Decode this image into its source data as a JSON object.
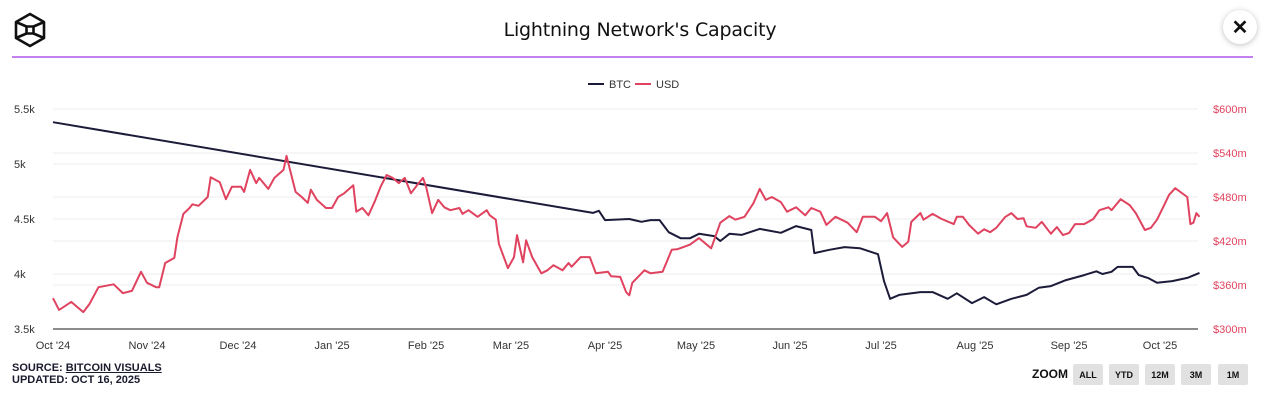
{
  "header": {
    "title": "Lightning Network's Capacity",
    "close_icon": "close-x-icon",
    "logo_icon": "cube-logo-icon"
  },
  "source": {
    "label": "SOURCE:",
    "link": "BITCOIN VISUALS",
    "updated": "UPDATED: OCT 16, 2025"
  },
  "zoom": {
    "label": "ZOOM",
    "buttons": [
      "ALL",
      "YTD",
      "12M",
      "3M",
      "1M"
    ]
  },
  "colors": {
    "btc": "#1c1b3a",
    "usd": "#e0435f",
    "accent": "#c47ff0"
  },
  "chart_data": {
    "type": "line",
    "title": "Lightning Network's Capacity",
    "legend": {
      "placement": "top-center",
      "entries": [
        "BTC",
        "USD"
      ]
    },
    "grid": true,
    "x_ticks": [
      "Oct '24",
      "Nov '24",
      "Dec '24",
      "Jan '25",
      "Feb '25",
      "Mar '25",
      "Apr '25",
      "May '25",
      "Jun '25",
      "Jul '25",
      "Aug '25",
      "Sep '25",
      "Oct '25"
    ],
    "y_left": {
      "ticks": [
        "3.5k",
        "4k",
        "4.5k",
        "5k",
        "5.5k"
      ],
      "range": [
        3500,
        5500
      ]
    },
    "y_right": {
      "ticks": [
        "$300m",
        "$360m",
        "$420m",
        "$480m",
        "$540m",
        "$600m"
      ],
      "range": [
        300,
        600
      ]
    },
    "series": [
      {
        "name": "BTC",
        "axis": "left",
        "points": [
          [
            "2024-10-01",
            5380
          ],
          [
            "2025-03-28",
            4555
          ],
          [
            "2025-03-30",
            4575
          ],
          [
            "2025-04-01",
            4490
          ],
          [
            "2025-04-09",
            4500
          ],
          [
            "2025-04-13",
            4475
          ],
          [
            "2025-04-16",
            4490
          ],
          [
            "2025-04-19",
            4490
          ],
          [
            "2025-04-22",
            4380
          ],
          [
            "2025-04-26",
            4325
          ],
          [
            "2025-04-29",
            4325
          ],
          [
            "2025-05-02",
            4365
          ],
          [
            "2025-05-07",
            4345
          ],
          [
            "2025-05-09",
            4300
          ],
          [
            "2025-05-12",
            4365
          ],
          [
            "2025-05-16",
            4355
          ],
          [
            "2025-05-22",
            4410
          ],
          [
            "2025-05-29",
            4375
          ],
          [
            "2025-06-03",
            4435
          ],
          [
            "2025-06-08",
            4400
          ],
          [
            "2025-06-09",
            4190
          ],
          [
            "2025-06-14",
            4220
          ],
          [
            "2025-06-19",
            4245
          ],
          [
            "2025-06-24",
            4235
          ],
          [
            "2025-06-30",
            4180
          ],
          [
            "2025-07-02",
            3935
          ],
          [
            "2025-07-04",
            3775
          ],
          [
            "2025-07-07",
            3810
          ],
          [
            "2025-07-14",
            3835
          ],
          [
            "2025-07-18",
            3835
          ],
          [
            "2025-07-23",
            3775
          ],
          [
            "2025-07-26",
            3825
          ],
          [
            "2025-07-31",
            3735
          ],
          [
            "2025-08-04",
            3790
          ],
          [
            "2025-08-08",
            3725
          ],
          [
            "2025-08-13",
            3775
          ],
          [
            "2025-08-18",
            3810
          ],
          [
            "2025-08-22",
            3875
          ],
          [
            "2025-08-26",
            3890
          ],
          [
            "2025-08-31",
            3945
          ],
          [
            "2025-09-06",
            3990
          ],
          [
            "2025-09-10",
            4025
          ],
          [
            "2025-09-12",
            4000
          ],
          [
            "2025-09-15",
            4020
          ],
          [
            "2025-09-17",
            4065
          ],
          [
            "2025-09-22",
            4065
          ],
          [
            "2025-09-24",
            3990
          ],
          [
            "2025-09-27",
            3965
          ],
          [
            "2025-09-30",
            3920
          ],
          [
            "2025-10-05",
            3935
          ],
          [
            "2025-10-10",
            3965
          ],
          [
            "2025-10-14",
            4010
          ]
        ]
      },
      {
        "name": "USD",
        "axis": "right",
        "unit": "$m",
        "points": [
          [
            "2024-10-01",
            342
          ],
          [
            "2024-10-03",
            326
          ],
          [
            "2024-10-07",
            337
          ],
          [
            "2024-10-11",
            323
          ],
          [
            "2024-10-13",
            334
          ],
          [
            "2024-10-16",
            357
          ],
          [
            "2024-10-21",
            361
          ],
          [
            "2024-10-24",
            349
          ],
          [
            "2024-10-27",
            352
          ],
          [
            "2024-10-30",
            378
          ],
          [
            "2024-11-01",
            363
          ],
          [
            "2024-11-04",
            357
          ],
          [
            "2024-11-05",
            357
          ],
          [
            "2024-11-07",
            390
          ],
          [
            "2024-11-10",
            397
          ],
          [
            "2024-11-11",
            425
          ],
          [
            "2024-11-13",
            457
          ],
          [
            "2024-11-15",
            465
          ],
          [
            "2024-11-16",
            470
          ],
          [
            "2024-11-18",
            468
          ],
          [
            "2024-11-21",
            480
          ],
          [
            "2024-11-22",
            507
          ],
          [
            "2024-11-25",
            500
          ],
          [
            "2024-11-27",
            477
          ],
          [
            "2024-11-29",
            494
          ],
          [
            "2024-12-02",
            494
          ],
          [
            "2024-12-03",
            487
          ],
          [
            "2024-12-05",
            517
          ],
          [
            "2024-12-07",
            499
          ],
          [
            "2024-12-08",
            506
          ],
          [
            "2024-12-11",
            491
          ],
          [
            "2024-12-13",
            506
          ],
          [
            "2024-12-16",
            517
          ],
          [
            "2024-12-17",
            536
          ],
          [
            "2024-12-20",
            487
          ],
          [
            "2024-12-22",
            480
          ],
          [
            "2024-12-24",
            472
          ],
          [
            "2024-12-25",
            490
          ],
          [
            "2024-12-27",
            476
          ],
          [
            "2024-12-30",
            465
          ],
          [
            "2025-01-01",
            465
          ],
          [
            "2025-01-03",
            480
          ],
          [
            "2025-01-05",
            485
          ],
          [
            "2025-01-08",
            496
          ],
          [
            "2025-01-09",
            460
          ],
          [
            "2025-01-11",
            465
          ],
          [
            "2025-01-13",
            455
          ],
          [
            "2025-01-15",
            473
          ],
          [
            "2025-01-17",
            494
          ],
          [
            "2025-01-19",
            510
          ],
          [
            "2025-01-21",
            506
          ],
          [
            "2025-01-23",
            499
          ],
          [
            "2025-01-25",
            506
          ],
          [
            "2025-01-27",
            485
          ],
          [
            "2025-01-29",
            496
          ],
          [
            "2025-01-31",
            506
          ],
          [
            "2025-02-01",
            494
          ],
          [
            "2025-02-03",
            458
          ],
          [
            "2025-02-05",
            476
          ],
          [
            "2025-02-07",
            466
          ],
          [
            "2025-02-09",
            462
          ],
          [
            "2025-02-12",
            465
          ],
          [
            "2025-02-13",
            457
          ],
          [
            "2025-02-15",
            462
          ],
          [
            "2025-02-18",
            453
          ],
          [
            "2025-02-21",
            462
          ],
          [
            "2025-02-22",
            455
          ],
          [
            "2025-02-24",
            449
          ],
          [
            "2025-02-25",
            416
          ],
          [
            "2025-02-28",
            383
          ],
          [
            "2025-03-02",
            398
          ],
          [
            "2025-03-03",
            428
          ],
          [
            "2025-03-05",
            391
          ],
          [
            "2025-03-06",
            421
          ],
          [
            "2025-03-08",
            398
          ],
          [
            "2025-03-11",
            376
          ],
          [
            "2025-03-13",
            380
          ],
          [
            "2025-03-15",
            387
          ],
          [
            "2025-03-18",
            380
          ],
          [
            "2025-03-20",
            390
          ],
          [
            "2025-03-21",
            385
          ],
          [
            "2025-03-24",
            398
          ],
          [
            "2025-03-27",
            398
          ],
          [
            "2025-03-29",
            376
          ],
          [
            "2025-04-02",
            378
          ],
          [
            "2025-04-03",
            372
          ],
          [
            "2025-04-06",
            371
          ],
          [
            "2025-04-08",
            350
          ],
          [
            "2025-04-09",
            346
          ],
          [
            "2025-04-10",
            363
          ],
          [
            "2025-04-14",
            380
          ],
          [
            "2025-04-16",
            376
          ],
          [
            "2025-04-20",
            378
          ],
          [
            "2025-04-23",
            408
          ],
          [
            "2025-04-25",
            409
          ],
          [
            "2025-04-29",
            415
          ],
          [
            "2025-05-02",
            424
          ],
          [
            "2025-05-06",
            410
          ],
          [
            "2025-05-09",
            445
          ],
          [
            "2025-05-12",
            454
          ],
          [
            "2025-05-14",
            449
          ],
          [
            "2025-05-17",
            453
          ],
          [
            "2025-05-20",
            472
          ],
          [
            "2025-05-22",
            491
          ],
          [
            "2025-05-24",
            476
          ],
          [
            "2025-05-26",
            480
          ],
          [
            "2025-05-29",
            473
          ],
          [
            "2025-05-31",
            460
          ],
          [
            "2025-06-03",
            466
          ],
          [
            "2025-06-06",
            455
          ],
          [
            "2025-06-08",
            465
          ],
          [
            "2025-06-11",
            460
          ],
          [
            "2025-06-13",
            442
          ],
          [
            "2025-06-16",
            453
          ],
          [
            "2025-06-20",
            445
          ],
          [
            "2025-06-23",
            432
          ],
          [
            "2025-06-25",
            453
          ],
          [
            "2025-06-29",
            453
          ],
          [
            "2025-07-01",
            447
          ],
          [
            "2025-07-03",
            458
          ],
          [
            "2025-07-05",
            425
          ],
          [
            "2025-07-08",
            412
          ],
          [
            "2025-07-10",
            419
          ],
          [
            "2025-07-11",
            446
          ],
          [
            "2025-07-14",
            458
          ],
          [
            "2025-07-15",
            449
          ],
          [
            "2025-07-18",
            457
          ],
          [
            "2025-07-21",
            450
          ],
          [
            "2025-07-25",
            443
          ],
          [
            "2025-07-26",
            453
          ],
          [
            "2025-07-28",
            453
          ],
          [
            "2025-07-30",
            442
          ],
          [
            "2025-08-02",
            430
          ],
          [
            "2025-08-04",
            436
          ],
          [
            "2025-08-06",
            432
          ],
          [
            "2025-08-08",
            438
          ],
          [
            "2025-08-11",
            453
          ],
          [
            "2025-08-13",
            458
          ],
          [
            "2025-08-15",
            450
          ],
          [
            "2025-08-17",
            451
          ],
          [
            "2025-08-18",
            440
          ],
          [
            "2025-08-21",
            438
          ],
          [
            "2025-08-23",
            446
          ],
          [
            "2025-08-26",
            430
          ],
          [
            "2025-08-28",
            439
          ],
          [
            "2025-08-30",
            428
          ],
          [
            "2025-09-01",
            431
          ],
          [
            "2025-09-03",
            443
          ],
          [
            "2025-09-06",
            443
          ],
          [
            "2025-09-09",
            450
          ],
          [
            "2025-09-11",
            462
          ],
          [
            "2025-09-14",
            466
          ],
          [
            "2025-09-15",
            462
          ],
          [
            "2025-09-18",
            477
          ],
          [
            "2025-09-21",
            469
          ],
          [
            "2025-09-23",
            458
          ],
          [
            "2025-09-26",
            435
          ],
          [
            "2025-09-28",
            438
          ],
          [
            "2025-09-30",
            449
          ],
          [
            "2025-10-02",
            466
          ],
          [
            "2025-10-04",
            483
          ],
          [
            "2025-10-06",
            492
          ],
          [
            "2025-10-10",
            480
          ],
          [
            "2025-10-11",
            443
          ],
          [
            "2025-10-12",
            445
          ],
          [
            "2025-10-13",
            458
          ],
          [
            "2025-10-14",
            453
          ]
        ]
      }
    ]
  }
}
